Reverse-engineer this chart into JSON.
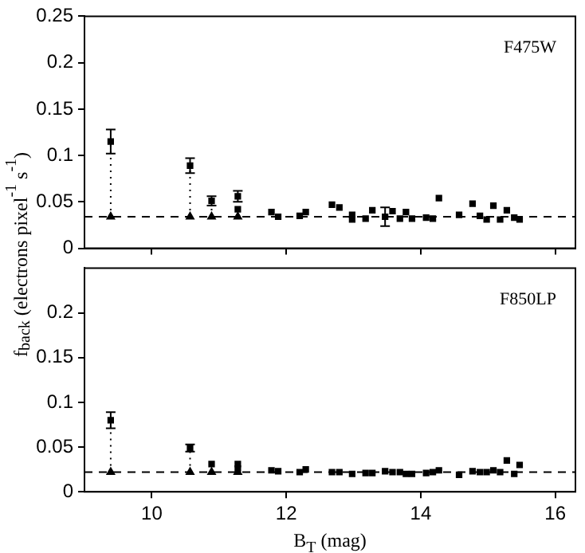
{
  "chart_data": [
    {
      "type": "scatter",
      "xlim": [
        9,
        16.3
      ],
      "xticks": [
        10,
        12,
        14,
        16
      ],
      "ylim": [
        0,
        0.25
      ],
      "yticks": [
        0,
        0.05,
        0.1,
        0.15,
        0.2,
        0.25
      ],
      "tick_labels": "y",
      "grid": false,
      "legend": false,
      "ylabel": "f$_{back}$ (electrons pixel$^{-1}$ s$^{-1}$)",
      "annotations": [
        "F475W"
      ],
      "ref_lines": [
        {
          "axis": "y",
          "value": 0.034,
          "line_style": "dashed",
          "color": "#000000"
        }
      ],
      "series": [
        {
          "color": "#000000",
          "marker": "square",
          "x": [
            9.39,
            10.57,
            10.89,
            11.28,
            11.28,
            11.78,
            11.88,
            12.2,
            12.29,
            12.68,
            12.79,
            12.98,
            12.98,
            13.18,
            13.28,
            13.47,
            13.58,
            13.69,
            13.78,
            13.87,
            14.08,
            14.18,
            14.27,
            14.57,
            14.77,
            14.88,
            14.98,
            15.08,
            15.18,
            15.28,
            15.39,
            15.47
          ],
          "values": [
            0.115,
            0.089,
            0.051,
            0.056,
            0.042,
            0.039,
            0.034,
            0.035,
            0.039,
            0.047,
            0.044,
            0.036,
            0.031,
            0.032,
            0.041,
            0.034,
            0.04,
            0.032,
            0.039,
            0.032,
            0.033,
            0.032,
            0.054,
            0.036,
            0.048,
            0.035,
            0.031,
            0.046,
            0.031,
            0.041,
            0.033,
            0.031
          ],
          "errors": [
            0.013,
            0.008,
            0.005,
            0.006,
            null,
            null,
            null,
            null,
            null,
            null,
            null,
            null,
            null,
            null,
            null,
            0.01,
            null,
            null,
            null,
            null,
            null,
            null,
            null,
            null,
            null,
            null,
            null,
            null,
            null,
            null,
            null,
            null
          ]
        },
        {
          "color": "#000000",
          "marker": "triangle",
          "x": [
            9.39,
            10.57,
            10.89,
            11.28
          ],
          "values": [
            0.034,
            0.034,
            0.034,
            0.034
          ]
        },
        {
          "type": "line",
          "color": "#000000",
          "line_style": "dotted",
          "x": [
            9.39,
            9.39
          ],
          "values": [
            0.034,
            0.115
          ]
        },
        {
          "type": "line",
          "color": "#000000",
          "line_style": "dotted",
          "x": [
            10.57,
            10.57
          ],
          "values": [
            0.034,
            0.089
          ]
        },
        {
          "type": "line",
          "color": "#000000",
          "line_style": "dotted",
          "x": [
            10.89,
            10.89
          ],
          "values": [
            0.034,
            0.051
          ]
        }
      ]
    },
    {
      "type": "scatter",
      "xlim": [
        9,
        16.3
      ],
      "xticks": [
        10,
        12,
        14,
        16
      ],
      "ylim": [
        0,
        0.25
      ],
      "yticks": [
        0,
        0.05,
        0.1,
        0.15,
        0.2
      ],
      "grid": false,
      "legend": false,
      "xlabel": "B$_{T}$ (mag)",
      "annotations": [
        "F850LP"
      ],
      "ref_lines": [
        {
          "axis": "y",
          "value": 0.022,
          "line_style": "dashed",
          "color": "#000000"
        }
      ],
      "series": [
        {
          "color": "#000000",
          "marker": "square",
          "x": [
            9.39,
            10.57,
            10.89,
            11.28,
            11.28,
            11.78,
            11.88,
            12.2,
            12.29,
            12.68,
            12.79,
            12.98,
            13.18,
            13.28,
            13.47,
            13.58,
            13.69,
            13.78,
            13.87,
            14.08,
            14.18,
            14.27,
            14.57,
            14.77,
            14.88,
            14.98,
            15.08,
            15.18,
            15.28,
            15.39,
            15.47
          ],
          "values": [
            0.08,
            0.049,
            0.031,
            0.031,
            0.026,
            0.024,
            0.023,
            0.022,
            0.025,
            0.022,
            0.022,
            0.02,
            0.021,
            0.021,
            0.023,
            0.022,
            0.022,
            0.02,
            0.02,
            0.021,
            0.022,
            0.024,
            0.019,
            0.023,
            0.022,
            0.022,
            0.024,
            0.022,
            0.035,
            0.02,
            0.03
          ],
          "errors": [
            0.009,
            0.004,
            null,
            null,
            null,
            null,
            null,
            null,
            null,
            null,
            null,
            null,
            null,
            null,
            null,
            null,
            null,
            null,
            null,
            null,
            null,
            null,
            null,
            null,
            null,
            null,
            null,
            null,
            null,
            null,
            null
          ]
        },
        {
          "color": "#000000",
          "marker": "triangle",
          "x": [
            9.39,
            10.57,
            10.89,
            11.28
          ],
          "values": [
            0.022,
            0.022,
            0.022,
            0.022
          ]
        },
        {
          "type": "line",
          "color": "#000000",
          "line_style": "dotted",
          "x": [
            9.39,
            9.39
          ],
          "values": [
            0.022,
            0.08
          ]
        },
        {
          "type": "line",
          "color": "#000000",
          "line_style": "dotted",
          "x": [
            10.57,
            10.57
          ],
          "values": [
            0.022,
            0.049
          ]
        }
      ]
    }
  ]
}
